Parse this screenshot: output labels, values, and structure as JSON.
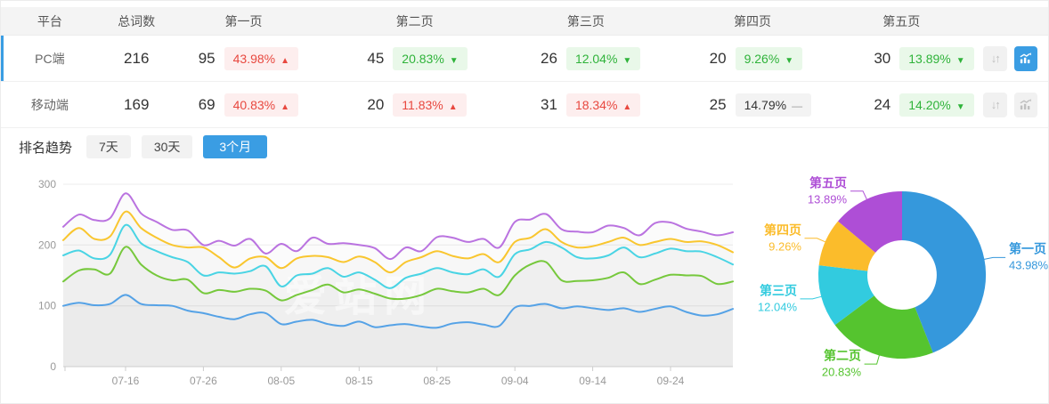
{
  "table": {
    "columns": [
      "平台",
      "总词数",
      "第一页",
      "第二页",
      "第三页",
      "第四页",
      "第五页"
    ],
    "rows": [
      {
        "platform": "PC端",
        "total": "216",
        "selected": true,
        "pages": [
          {
            "count": "95",
            "pct": "43.98%",
            "dir": "up"
          },
          {
            "count": "45",
            "pct": "20.83%",
            "dir": "down"
          },
          {
            "count": "26",
            "pct": "12.04%",
            "dir": "down"
          },
          {
            "count": "20",
            "pct": "9.26%",
            "dir": "down"
          },
          {
            "count": "30",
            "pct": "13.89%",
            "dir": "down"
          }
        ],
        "actions": {
          "sort_icon": "updown-arrows-icon",
          "trend_icon": "trend-chart-icon",
          "trend_active": true
        }
      },
      {
        "platform": "移动端",
        "total": "169",
        "selected": false,
        "pages": [
          {
            "count": "69",
            "pct": "40.83%",
            "dir": "up"
          },
          {
            "count": "20",
            "pct": "11.83%",
            "dir": "up"
          },
          {
            "count": "31",
            "pct": "18.34%",
            "dir": "up"
          },
          {
            "count": "25",
            "pct": "14.79%",
            "dir": "flat"
          },
          {
            "count": "24",
            "pct": "14.20%",
            "dir": "down"
          }
        ],
        "actions": {
          "sort_icon": "updown-arrows-icon",
          "trend_icon": "trend-chart-icon",
          "trend_active": false
        }
      }
    ]
  },
  "trend": {
    "title": "排名趋势",
    "tabs": [
      {
        "label": "7天",
        "active": false
      },
      {
        "label": "30天",
        "active": false
      },
      {
        "label": "3个月",
        "active": true
      }
    ]
  },
  "watermark": "爱站网",
  "colors": {
    "accent": "#3a9de3",
    "up_text": "#e8483f",
    "up_bg": "#fdeeee",
    "down_text": "#2fb33a",
    "down_bg": "#e9f8e9",
    "flat_bg": "#f3f3f3",
    "header_bg": "#f4f4f4"
  },
  "chart_data": [
    {
      "type": "line",
      "title": "排名趋势 3个月",
      "x_tick_labels": [
        "07-16",
        "07-26",
        "08-05",
        "08-15",
        "08-25",
        "09-04",
        "09-14",
        "09-24"
      ],
      "x_tick_indices": [
        4,
        9,
        14,
        19,
        24,
        29,
        34,
        39
      ],
      "y_ticks": [
        0,
        100,
        200,
        300
      ],
      "ylim": [
        0,
        300
      ],
      "grid": true,
      "legend": "none",
      "area_fill": "rgba(125,125,125,0.030)",
      "series": [
        {
          "name": "第一页",
          "color": "#55a2e6",
          "values": [
            100,
            105,
            101,
            103,
            118,
            103,
            101,
            100,
            92,
            88,
            82,
            78,
            86,
            88,
            70,
            74,
            77,
            70,
            67,
            74,
            65,
            68,
            70,
            66,
            64,
            71,
            73,
            69,
            67,
            97,
            100,
            103,
            96,
            99,
            96,
            93,
            96,
            90,
            95,
            99,
            90,
            84,
            86,
            95
          ]
        },
        {
          "name": "第二页",
          "color": "#76c83c",
          "values": [
            140,
            158,
            160,
            153,
            197,
            168,
            150,
            142,
            143,
            121,
            126,
            123,
            128,
            125,
            109,
            118,
            126,
            135,
            122,
            127,
            120,
            112,
            112,
            118,
            128,
            124,
            122,
            128,
            118,
            150,
            168,
            172,
            142,
            141,
            142,
            146,
            155,
            136,
            143,
            151,
            150,
            149,
            136,
            140
          ]
        },
        {
          "name": "第三页",
          "color": "#49d4e4",
          "values": [
            183,
            191,
            178,
            184,
            233,
            203,
            190,
            180,
            172,
            150,
            155,
            153,
            157,
            165,
            132,
            150,
            153,
            162,
            148,
            155,
            143,
            129,
            146,
            153,
            162,
            155,
            152,
            160,
            148,
            185,
            193,
            205,
            196,
            180,
            178,
            183,
            196,
            180,
            186,
            194,
            190,
            189,
            180,
            168
          ]
        },
        {
          "name": "第四页",
          "color": "#f9c62f",
          "values": [
            208,
            228,
            210,
            214,
            255,
            228,
            212,
            200,
            196,
            196,
            180,
            163,
            178,
            180,
            162,
            178,
            182,
            180,
            172,
            181,
            172,
            155,
            172,
            180,
            190,
            182,
            178,
            185,
            172,
            205,
            212,
            226,
            205,
            196,
            198,
            205,
            212,
            200,
            205,
            210,
            205,
            206,
            200,
            188
          ]
        },
        {
          "name": "第五页",
          "color": "#ba73e0",
          "values": [
            230,
            250,
            241,
            244,
            285,
            252,
            238,
            225,
            224,
            200,
            207,
            199,
            210,
            186,
            202,
            190,
            212,
            202,
            203,
            200,
            195,
            177,
            196,
            190,
            213,
            212,
            205,
            210,
            196,
            238,
            242,
            251,
            226,
            222,
            221,
            232,
            228,
            216,
            236,
            237,
            227,
            222,
            216,
            221
          ]
        }
      ]
    },
    {
      "type": "pie",
      "donut": true,
      "start_angle": "top",
      "direction": "clockwise",
      "slices": [
        {
          "label": "第一页",
          "pct": "43.98%",
          "value": 43.98,
          "color": "#3598dc"
        },
        {
          "label": "第二页",
          "pct": "20.83%",
          "value": 20.83,
          "color": "#55c42f"
        },
        {
          "label": "第三页",
          "pct": "12.04%",
          "value": 12.04,
          "color": "#32cbdf"
        },
        {
          "label": "第四页",
          "pct": "9.26%",
          "value": 9.26,
          "color": "#fbbc2b"
        },
        {
          "label": "第五页",
          "pct": "13.89%",
          "value": 13.89,
          "color": "#ae4ed6"
        }
      ]
    }
  ]
}
